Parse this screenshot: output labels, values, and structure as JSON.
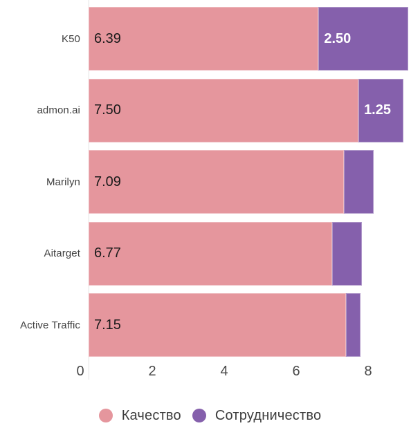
{
  "chart_data": {
    "type": "bar",
    "orientation": "horizontal",
    "stacked": true,
    "title": "",
    "categories": [
      "K50",
      "admon.ai",
      "Marilyn",
      "Aitarget",
      "Active Traffic"
    ],
    "series": [
      {
        "key": "quality",
        "name": "Качество",
        "color": "#e5969d",
        "values": [
          6.39,
          7.5,
          7.09,
          6.77,
          7.15
        ],
        "labels": [
          "6.39",
          "7.50",
          "7.09",
          "6.77",
          "7.15"
        ],
        "label_color": "#1a1a1a",
        "label_bold": false
      },
      {
        "key": "cooperation",
        "name": "Сотрудничество",
        "color": "#8560ac",
        "values": [
          2.5,
          1.25,
          0.83,
          0.82,
          0.4
        ],
        "labels": [
          "2.50",
          "1.25",
          "",
          "",
          ""
        ],
        "label_color": "#ffffff",
        "label_bold": true
      }
    ],
    "xlim": [
      0,
      9.21
    ],
    "x_ticks": [
      0,
      2,
      4,
      6,
      8
    ],
    "grid": false,
    "legend_position": "bottom",
    "colors": {
      "axis_line": "#e2e2e2",
      "tick_label": "#494949",
      "category_label": "#3f3f3f",
      "legend_text": "#3c3c3c",
      "background": "#ffffff"
    }
  }
}
